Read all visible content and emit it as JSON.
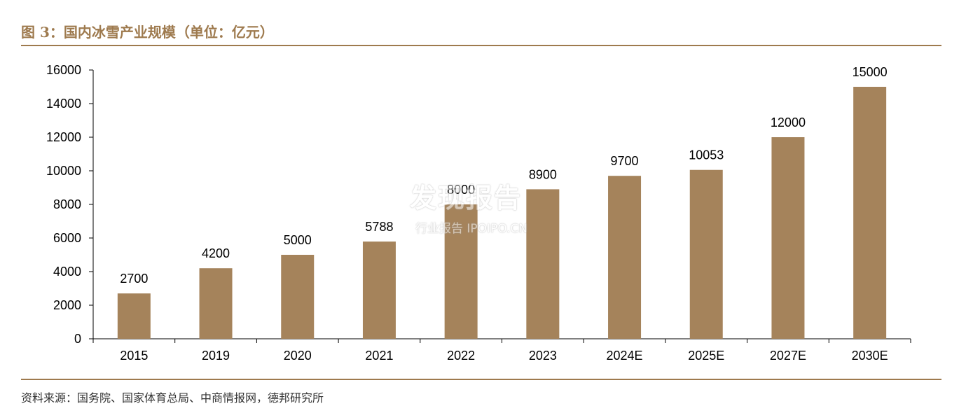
{
  "title": "图 3：国内冰雪产业规模（单位：亿元）",
  "source": "资料来源：国务院、国家体育总局、中商情报网，德邦研究所",
  "watermark": {
    "main": "发现报告",
    "sub": "行业报告 IPOIPO.CN"
  },
  "chart_data": {
    "type": "bar",
    "title": "图 3：国内冰雪产业规模（单位：亿元）",
    "categories": [
      "2015",
      "2019",
      "2020",
      "2021",
      "2022",
      "2023",
      "2024E",
      "2025E",
      "2027E",
      "2030E"
    ],
    "values": [
      2700,
      4200,
      5000,
      5788,
      8000,
      8900,
      9700,
      10053,
      12000,
      15000
    ],
    "value_labels": [
      "2700",
      "4200",
      "5000",
      "5788",
      "8000",
      "8900",
      "9700",
      "10053",
      "12000",
      "15000"
    ],
    "ylim": [
      0,
      16000
    ],
    "yticks": [
      0,
      2000,
      4000,
      6000,
      8000,
      10000,
      12000,
      14000,
      16000
    ],
    "ytick_labels": [
      "0",
      "2000",
      "4000",
      "6000",
      "8000",
      "10000",
      "12000",
      "14000",
      "16000"
    ],
    "bar_color": "#A5835B",
    "grid": false,
    "legend": "none"
  },
  "colors": {
    "accent": "#9E7A4E"
  }
}
